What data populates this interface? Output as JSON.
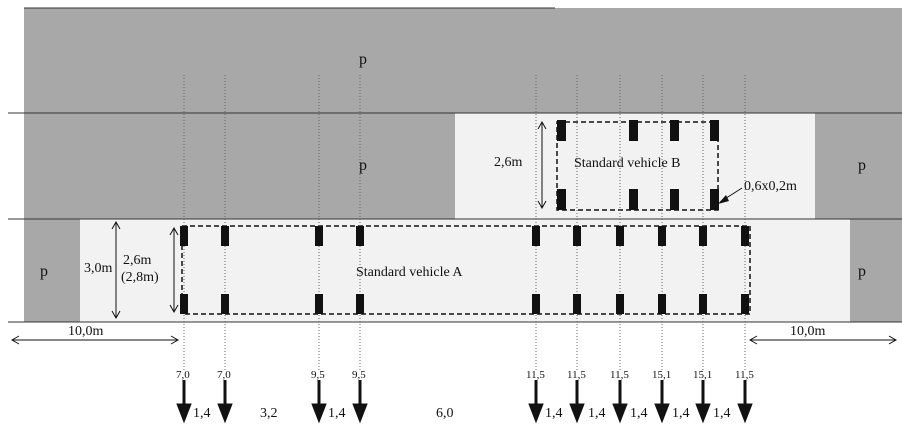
{
  "lanes": {
    "top_label": "p",
    "middle_label": "p",
    "middle_right_label": "p",
    "bottom_left_label": "p",
    "bottom_right_label": "p"
  },
  "vehicle_a": {
    "label": "Standard vehicle A",
    "lane_width": "3,0m",
    "width_line1": "2,6m",
    "width_line2": "(2,8m)"
  },
  "vehicle_b": {
    "label": "Standard vehicle B",
    "width": "2,6m",
    "wheel_contact": "0,6x0,2m"
  },
  "distances": {
    "left": "10,0m",
    "right": "10,0m"
  },
  "axle_loads": [
    "7,0",
    "7,0",
    "9,5",
    "9,5",
    "11,5",
    "11,5",
    "11,5",
    "15,1",
    "15,1",
    "11,5"
  ],
  "spacings": [
    "1,4",
    "3,2",
    "1,4",
    "6,0",
    "1,4",
    "1,4",
    "1,4",
    "1,4",
    "1,4"
  ],
  "colors": {
    "gray_lane": "#a8a8a8",
    "light_area": "#f2f2f2",
    "wheel": "#111111"
  }
}
